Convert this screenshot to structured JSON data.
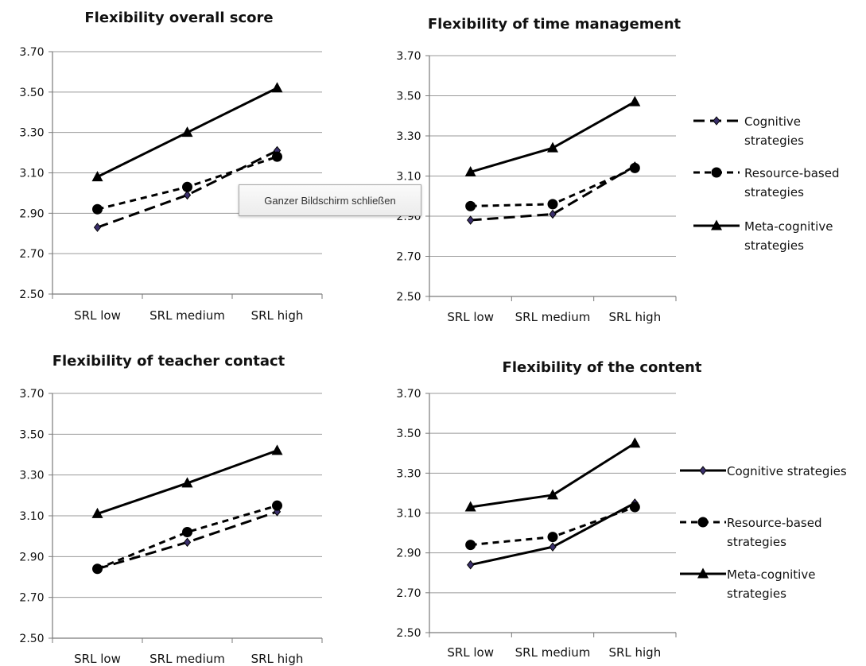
{
  "tooltip": {
    "text": "Ganzer Bildschirm schließen"
  },
  "chart_data": [
    {
      "type": "line",
      "title": "Flexibility overall score",
      "categories": [
        "SRL low",
        "SRL medium",
        "SRL high"
      ],
      "ylim": [
        2.5,
        3.7
      ],
      "yticks": [
        "2.50",
        "2.70",
        "2.90",
        "3.10",
        "3.30",
        "3.50",
        "3.70"
      ],
      "grid": true,
      "legend": null,
      "series": [
        {
          "marker": "diamond",
          "dash": "long",
          "values": [
            2.83,
            2.99,
            3.21
          ]
        },
        {
          "marker": "circle",
          "dash": "short",
          "values": [
            2.92,
            3.03,
            3.18
          ]
        },
        {
          "marker": "triangle",
          "dash": "solid",
          "values": [
            3.08,
            3.3,
            3.52
          ]
        }
      ]
    },
    {
      "type": "line",
      "title": "Flexibility of time management",
      "categories": [
        "SRL low",
        "SRL medium",
        "SRL high"
      ],
      "ylim": [
        2.5,
        3.7
      ],
      "yticks": [
        "2.50",
        "2.70",
        "2.90",
        "3.10",
        "3.30",
        "3.50",
        "3.70"
      ],
      "grid": true,
      "legend": {
        "position": "right",
        "entries": [
          [
            "Cognitive",
            "strategies"
          ],
          [
            "Resource-based",
            "strategies"
          ],
          [
            "Meta-cognitive",
            "strategies"
          ]
        ]
      },
      "series": [
        {
          "name": "Cognitive strategies",
          "marker": "diamond",
          "dash": "long",
          "values": [
            2.88,
            2.91,
            3.15
          ]
        },
        {
          "name": "Resource-based strategies",
          "marker": "circle",
          "dash": "short",
          "values": [
            2.95,
            2.96,
            3.14
          ]
        },
        {
          "name": "Meta-cognitive strategies",
          "marker": "triangle",
          "dash": "solid",
          "values": [
            3.12,
            3.24,
            3.47
          ]
        }
      ]
    },
    {
      "type": "line",
      "title": "Flexibility of teacher contact",
      "categories": [
        "SRL low",
        "SRL medium",
        "SRL high"
      ],
      "ylim": [
        2.5,
        3.7
      ],
      "yticks": [
        "2.50",
        "2.70",
        "2.90",
        "3.10",
        "3.30",
        "3.50",
        "3.70"
      ],
      "grid": true,
      "legend": null,
      "series": [
        {
          "marker": "diamond",
          "dash": "long",
          "values": [
            2.84,
            2.97,
            3.12
          ]
        },
        {
          "marker": "circle",
          "dash": "short",
          "values": [
            2.84,
            3.02,
            3.15
          ]
        },
        {
          "marker": "triangle",
          "dash": "solid",
          "values": [
            3.11,
            3.26,
            3.42
          ]
        }
      ]
    },
    {
      "type": "line",
      "title": "Flexibility of the content",
      "categories": [
        "SRL low",
        "SRL medium",
        "SRL high"
      ],
      "ylim": [
        2.5,
        3.7
      ],
      "yticks": [
        "2.50",
        "2.70",
        "2.90",
        "3.10",
        "3.30",
        "3.50",
        "3.70"
      ],
      "grid": true,
      "legend": {
        "position": "right",
        "entries": [
          [
            "Cognitive strategies"
          ],
          [
            "Resource-based",
            "strategies"
          ],
          [
            "Meta-cognitive",
            "strategies"
          ]
        ]
      },
      "series": [
        {
          "name": "Cognitive strategies",
          "marker": "diamond",
          "dash": "solid",
          "values": [
            2.84,
            2.93,
            3.15
          ]
        },
        {
          "name": "Resource-based strategies",
          "marker": "circle",
          "dash": "short",
          "values": [
            2.94,
            2.98,
            3.13
          ]
        },
        {
          "name": "Meta-cognitive strategies",
          "marker": "triangle",
          "dash": "solid",
          "values": [
            3.13,
            3.19,
            3.45
          ]
        }
      ]
    }
  ]
}
